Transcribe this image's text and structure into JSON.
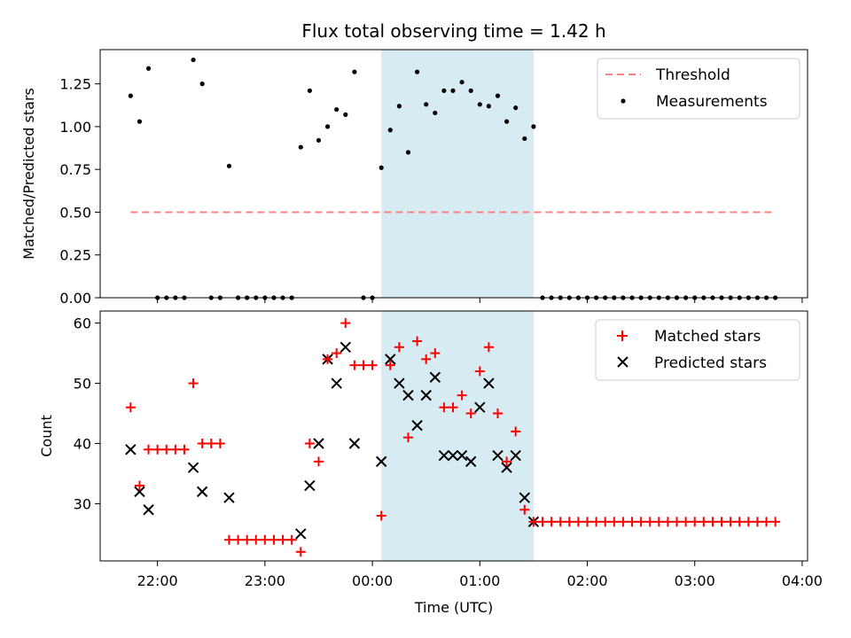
{
  "chart_data": [
    {
      "type": "scatter",
      "title": "Flux total observing time = 1.42 h",
      "xlabel": "",
      "ylabel": "Matched/Predicted stars",
      "xlim": [
        "21:28",
        "04:03"
      ],
      "ylim": [
        0,
        1.45
      ],
      "y_ticks": [
        0.0,
        0.25,
        0.5,
        0.75,
        1.0,
        1.25
      ],
      "y_tick_labels": [
        "0.00",
        "0.25",
        "0.50",
        "0.75",
        "1.00",
        "1.25"
      ],
      "shaded_region": {
        "x_start": "00:05",
        "x_end": "01:30",
        "color": "#add8e6"
      },
      "legend_position": "top-right",
      "colors": {
        "threshold": "#ff8080",
        "measurements": "#000000",
        "shade": "#add8e6"
      },
      "threshold": {
        "name": "Threshold",
        "x_start": "21:45",
        "x_end": "03:45",
        "y": 0.5
      },
      "series": [
        {
          "name": "Measurements",
          "x": [
            "21:45",
            "21:50",
            "21:55",
            "22:00",
            "22:05",
            "22:10",
            "22:15",
            "22:20",
            "22:25",
            "22:30",
            "22:35",
            "22:40",
            "22:45",
            "22:50",
            "22:55",
            "23:00",
            "23:05",
            "23:10",
            "23:15",
            "23:20",
            "23:25",
            "23:30",
            "23:35",
            "23:40",
            "23:45",
            "23:50",
            "23:55",
            "00:00",
            "00:05",
            "00:10",
            "00:15",
            "00:20",
            "00:25",
            "00:30",
            "00:35",
            "00:40",
            "00:45",
            "00:50",
            "00:55",
            "01:00",
            "01:05",
            "01:10",
            "01:15",
            "01:20",
            "01:25",
            "01:30",
            "01:35",
            "01:40",
            "01:45",
            "01:50",
            "01:55",
            "02:00",
            "02:05",
            "02:10",
            "02:15",
            "02:20",
            "02:25",
            "02:30",
            "02:35",
            "02:40",
            "02:45",
            "02:50",
            "02:55",
            "03:00",
            "03:05",
            "03:10",
            "03:15",
            "03:20",
            "03:25",
            "03:30",
            "03:35",
            "03:40",
            "03:45"
          ],
          "values": [
            1.18,
            1.03,
            1.34,
            0,
            0,
            0,
            0,
            1.39,
            1.25,
            0,
            0,
            0.77,
            0,
            0,
            0,
            0,
            0,
            0,
            0,
            0.88,
            1.21,
            0.92,
            1.0,
            1.1,
            1.07,
            1.32,
            0,
            0,
            0.76,
            0.98,
            1.12,
            0.85,
            1.32,
            1.13,
            1.08,
            1.21,
            1.21,
            1.26,
            1.21,
            1.13,
            1.12,
            1.18,
            1.03,
            1.11,
            0.93,
            1.0,
            0,
            0,
            0,
            0,
            0,
            0,
            0,
            0,
            0,
            0,
            0,
            0,
            0,
            0,
            0,
            0,
            0,
            0,
            0,
            0,
            0,
            0,
            0,
            0,
            0,
            0,
            0
          ]
        }
      ]
    },
    {
      "type": "scatter",
      "title": "",
      "xlabel": "Time (UTC)",
      "ylabel": "Count",
      "xlim": [
        "21:28",
        "04:03"
      ],
      "ylim": [
        20.5,
        62
      ],
      "x_ticks": [
        "22:00",
        "23:00",
        "00:00",
        "01:00",
        "02:00",
        "03:00",
        "04:00"
      ],
      "x_tick_labels": [
        "22:00",
        "23:00",
        "00:00",
        "01:00",
        "02:00",
        "03:00",
        "04:00"
      ],
      "y_ticks": [
        30,
        40,
        50,
        60
      ],
      "y_tick_labels": [
        "30",
        "40",
        "50",
        "60"
      ],
      "shaded_region": {
        "x_start": "00:05",
        "x_end": "01:30",
        "color": "#add8e6"
      },
      "legend_position": "top-right",
      "colors": {
        "matched": "#ff0000",
        "predicted": "#000000",
        "shade": "#add8e6"
      },
      "x": [
        "21:45",
        "21:50",
        "21:55",
        "22:00",
        "22:05",
        "22:10",
        "22:15",
        "22:20",
        "22:25",
        "22:30",
        "22:35",
        "22:40",
        "22:45",
        "22:50",
        "22:55",
        "23:00",
        "23:05",
        "23:10",
        "23:15",
        "23:20",
        "23:25",
        "23:30",
        "23:35",
        "23:40",
        "23:45",
        "23:50",
        "23:55",
        "00:00",
        "00:05",
        "00:10",
        "00:15",
        "00:20",
        "00:25",
        "00:30",
        "00:35",
        "00:40",
        "00:45",
        "00:50",
        "00:55",
        "01:00",
        "01:05",
        "01:10",
        "01:15",
        "01:20",
        "01:25",
        "01:30",
        "01:35",
        "01:40",
        "01:45",
        "01:50",
        "01:55",
        "02:00",
        "02:05",
        "02:10",
        "02:15",
        "02:20",
        "02:25",
        "02:30",
        "02:35",
        "02:40",
        "02:45",
        "02:50",
        "02:55",
        "03:00",
        "03:05",
        "03:10",
        "03:15",
        "03:20",
        "03:25",
        "03:30",
        "03:35",
        "03:40",
        "03:45"
      ],
      "series": [
        {
          "name": "Matched stars",
          "marker": "plus",
          "values": [
            46,
            33,
            39,
            39,
            39,
            39,
            39,
            50,
            40,
            40,
            40,
            24,
            24,
            24,
            24,
            24,
            24,
            24,
            24,
            22,
            40,
            37,
            54,
            55,
            60,
            53,
            53,
            53,
            28,
            53,
            56,
            41,
            57,
            54,
            55,
            46,
            46,
            48,
            45,
            52,
            56,
            45,
            37,
            42,
            29,
            27,
            27,
            27,
            27,
            27,
            27,
            27,
            27,
            27,
            27,
            27,
            27,
            27,
            27,
            27,
            27,
            27,
            27,
            27,
            27,
            27,
            27,
            27,
            27,
            27,
            27,
            27,
            27
          ]
        },
        {
          "name": "Predicted stars",
          "marker": "x",
          "indices": [
            0,
            1,
            2,
            7,
            8,
            11,
            19,
            20,
            21,
            22,
            23,
            24,
            25,
            28,
            29,
            30,
            31,
            32,
            33,
            34,
            35,
            36,
            37,
            38,
            39,
            40,
            41,
            42,
            43,
            44,
            45
          ],
          "values": [
            39,
            32,
            29,
            36,
            32,
            31,
            25,
            33,
            40,
            54,
            50,
            56,
            40,
            37,
            54,
            50,
            48,
            43,
            48,
            51,
            38,
            38,
            38,
            37,
            46,
            50,
            38,
            36,
            38,
            31,
            27
          ]
        }
      ]
    }
  ]
}
